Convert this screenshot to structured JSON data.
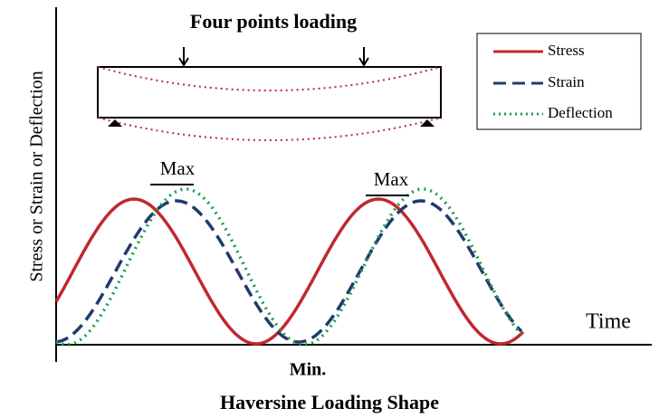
{
  "diagram": {
    "title": "Haversine Loading Shape",
    "beam_label": "Four points loading",
    "y_axis_label": "Stress or Strain or Deflection",
    "x_axis_label": "Time",
    "legend": [
      "Stress",
      "Strain",
      "Deflection"
    ],
    "max_labels": [
      "Max",
      "Max"
    ],
    "min_label": "Min."
  }
}
